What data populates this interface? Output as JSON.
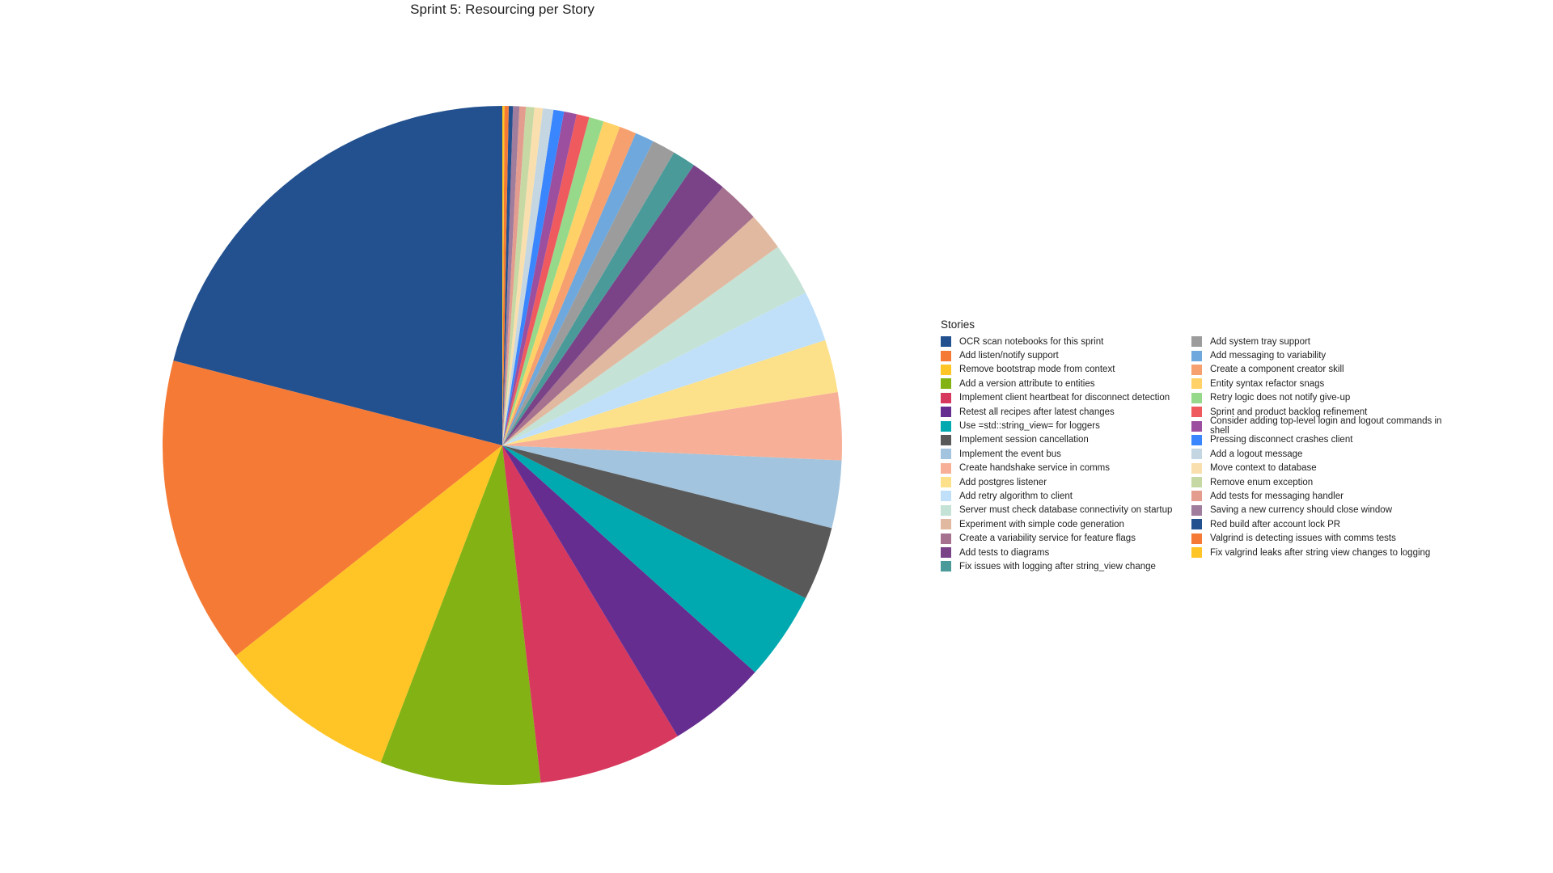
{
  "chart_data": {
    "type": "pie",
    "title": "Sprint 5: Resourcing per Story",
    "legend_title": "Stories",
    "legend_placement": "right",
    "direction": "counterclockwise",
    "start_angle": "top",
    "unit": "percent (estimated)",
    "slices": [
      {
        "label": "OCR scan notebooks for this sprint",
        "value": 20.9,
        "color": "#23518f"
      },
      {
        "label": "Add listen/notify support",
        "value": 14.6,
        "color": "#f47a35"
      },
      {
        "label": "Remove bootstrap mode from context",
        "value": 8.5,
        "color": "#ffc425"
      },
      {
        "label": "Add a version attribute to entities",
        "value": 7.6,
        "color": "#82b214"
      },
      {
        "label": "Implement client heartbeat for disconnect detection",
        "value": 6.8,
        "color": "#d7385e"
      },
      {
        "label": "Retest all recipes after latest changes",
        "value": 4.7,
        "color": "#662d91"
      },
      {
        "label": "Use =std::string_view= for loggers",
        "value": 4.2,
        "color": "#00a9b0"
      },
      {
        "label": "Implement session cancellation",
        "value": 3.5,
        "color": "#595959"
      },
      {
        "label": "Implement the event bus",
        "value": 3.2,
        "color": "#a2c4de"
      },
      {
        "label": "Create handshake service in comms",
        "value": 3.2,
        "color": "#f7b097"
      },
      {
        "label": "Add postgres listener",
        "value": 2.5,
        "color": "#fde18a"
      },
      {
        "label": "Add retry algorithm to client",
        "value": 2.4,
        "color": "#c0e0f9"
      },
      {
        "label": "Server must check database connectivity on startup",
        "value": 2.5,
        "color": "#c5e2d6"
      },
      {
        "label": "Experiment with simple code generation",
        "value": 1.8,
        "color": "#e1b9a0"
      },
      {
        "label": "Create a variability service for feature flags",
        "value": 2.0,
        "color": "#a5718e"
      },
      {
        "label": "Add tests to diagrams",
        "value": 1.7,
        "color": "#7a4388"
      },
      {
        "label": "Fix issues with logging after string_view change",
        "value": 1.1,
        "color": "#4a9a9a"
      },
      {
        "label": "Add system tray support",
        "value": 1.1,
        "color": "#9c9c9c"
      },
      {
        "label": "Add messaging to variability",
        "value": 0.9,
        "color": "#6fa8dc"
      },
      {
        "label": "Create a component creator skill",
        "value": 0.8,
        "color": "#f6a06f"
      },
      {
        "label": "Entity syntax refactor snags",
        "value": 0.8,
        "color": "#ffd166"
      },
      {
        "label": "Retry logic does not notify give-up",
        "value": 0.7,
        "color": "#97d98a"
      },
      {
        "label": "Sprint and product backlog refinement",
        "value": 0.6,
        "color": "#ef5a5f"
      },
      {
        "label": "Consider adding top-level login and logout commands in shell",
        "value": 0.6,
        "color": "#9b4f9e"
      },
      {
        "label": "Pressing disconnect crashes client",
        "value": 0.5,
        "color": "#3a86ff"
      },
      {
        "label": "Add a logout message",
        "value": 0.5,
        "color": "#c3d6e2"
      },
      {
        "label": "Move context to database",
        "value": 0.4,
        "color": "#f9dfae"
      },
      {
        "label": "Remove enum exception",
        "value": 0.4,
        "color": "#c6d8a4"
      },
      {
        "label": "Add tests for messaging handler",
        "value": 0.3,
        "color": "#e49c8e"
      },
      {
        "label": "Saving a new currency should close window",
        "value": 0.3,
        "color": "#a07c9d"
      },
      {
        "label": "Red build after account lock PR",
        "value": 0.2,
        "color": "#23518f"
      },
      {
        "label": "Valgrind is detecting issues with comms tests",
        "value": 0.2,
        "color": "#f47a35"
      },
      {
        "label": "Fix valgrind leaks after string view changes to logging",
        "value": 0.1,
        "color": "#ffc425"
      }
    ]
  }
}
